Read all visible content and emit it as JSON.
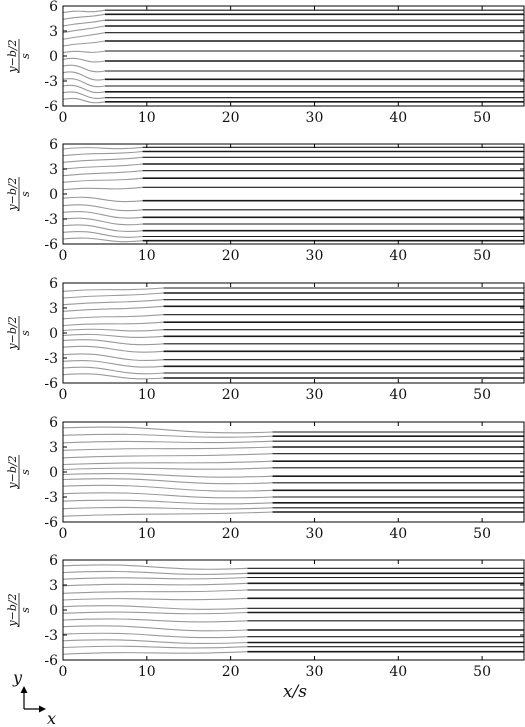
{
  "chart_data": [
    {
      "type": "line",
      "panel": 1,
      "title": "",
      "ylabel_numerator": "y−b/2",
      "ylabel_denominator": "s",
      "xlim": [
        0,
        55
      ],
      "ylim": [
        -6,
        6
      ],
      "xticks": [
        0,
        10,
        20,
        30,
        40,
        50
      ],
      "yticks": [
        -6,
        -3,
        0,
        3,
        6
      ],
      "x_transition": 5,
      "series": [
        {
          "values": [
            {
              "y0": 5.2,
              "yf": 5.5
            },
            {
              "y0": 4.4,
              "yf": 5.0
            },
            {
              "y0": 3.6,
              "yf": 4.3
            },
            {
              "y0": 2.8,
              "yf": 3.6
            },
            {
              "y0": 2.0,
              "yf": 2.8
            },
            {
              "y0": 1.2,
              "yf": 1.8
            },
            {
              "y0": 0.4,
              "yf": 0.6
            },
            {
              "y0": -0.4,
              "yf": -0.6
            },
            {
              "y0": -1.2,
              "yf": -1.8
            },
            {
              "y0": -2.0,
              "yf": -2.8
            },
            {
              "y0": -2.8,
              "yf": -3.6
            },
            {
              "y0": -3.6,
              "yf": -4.3
            },
            {
              "y0": -4.4,
              "yf": -5.0
            },
            {
              "y0": -5.2,
              "yf": -5.5
            }
          ]
        }
      ]
    },
    {
      "type": "line",
      "panel": 2,
      "title": "",
      "ylabel_numerator": "y−b/2",
      "ylabel_denominator": "s",
      "xlim": [
        0,
        55
      ],
      "ylim": [
        -6,
        6
      ],
      "xticks": [
        0,
        10,
        20,
        30,
        40,
        50
      ],
      "yticks": [
        -6,
        -3,
        0,
        3,
        6
      ],
      "x_transition": 9.5,
      "series": [
        {
          "values": [
            {
              "y0": 5.4,
              "yf": 5.6
            },
            {
              "y0": 4.6,
              "yf": 5.1
            },
            {
              "y0": 3.8,
              "yf": 4.4
            },
            {
              "y0": 3.0,
              "yf": 3.6
            },
            {
              "y0": 2.2,
              "yf": 2.8
            },
            {
              "y0": 1.4,
              "yf": 1.9
            },
            {
              "y0": 0.5,
              "yf": 0.8
            },
            {
              "y0": -0.5,
              "yf": -0.8
            },
            {
              "y0": -1.4,
              "yf": -1.9
            },
            {
              "y0": -2.2,
              "yf": -2.8
            },
            {
              "y0": -3.0,
              "yf": -3.6
            },
            {
              "y0": -3.8,
              "yf": -4.4
            },
            {
              "y0": -4.6,
              "yf": -5.1
            },
            {
              "y0": -5.4,
              "yf": -5.6
            }
          ]
        }
      ]
    },
    {
      "type": "line",
      "panel": 3,
      "title": "",
      "ylabel_numerator": "y−b/2",
      "ylabel_denominator": "s",
      "xlim": [
        0,
        55
      ],
      "ylim": [
        -6,
        6
      ],
      "xticks": [
        0,
        10,
        20,
        30,
        40,
        50
      ],
      "yticks": [
        -6,
        -3,
        0,
        3,
        6
      ],
      "x_transition": 12,
      "series": [
        {
          "values": [
            {
              "y0": 5.0,
              "yf": 5.4
            },
            {
              "y0": 4.2,
              "yf": 4.8
            },
            {
              "y0": 3.4,
              "yf": 4.0
            },
            {
              "y0": 2.6,
              "yf": 3.2
            },
            {
              "y0": 1.7,
              "yf": 2.2
            },
            {
              "y0": 0.9,
              "yf": 1.3
            },
            {
              "y0": 0.3,
              "yf": 0.4
            },
            {
              "y0": -0.3,
              "yf": -0.4
            },
            {
              "y0": -0.9,
              "yf": -1.3
            },
            {
              "y0": -1.7,
              "yf": -2.2
            },
            {
              "y0": -2.6,
              "yf": -3.2
            },
            {
              "y0": -3.4,
              "yf": -4.0
            },
            {
              "y0": -4.2,
              "yf": -4.8
            },
            {
              "y0": -5.0,
              "yf": -5.4
            }
          ]
        }
      ]
    },
    {
      "type": "line",
      "panel": 4,
      "title": "",
      "ylabel_numerator": "y−b/2",
      "ylabel_denominator": "s",
      "xlim": [
        0,
        55
      ],
      "ylim": [
        -6,
        6
      ],
      "xticks": [
        0,
        10,
        20,
        30,
        40,
        50
      ],
      "yticks": [
        -6,
        -3,
        0,
        3,
        6
      ],
      "x_transition": 25,
      "series": [
        {
          "values": [
            {
              "y0": 5.3,
              "yf": 4.8
            },
            {
              "y0": 4.4,
              "yf": 4.3
            },
            {
              "y0": 3.5,
              "yf": 3.7
            },
            {
              "y0": 2.6,
              "yf": 3.0
            },
            {
              "y0": 1.7,
              "yf": 2.2
            },
            {
              "y0": 0.9,
              "yf": 1.3
            },
            {
              "y0": 0.3,
              "yf": 0.5
            },
            {
              "y0": -0.3,
              "yf": -0.5
            },
            {
              "y0": -0.9,
              "yf": -1.3
            },
            {
              "y0": -1.7,
              "yf": -2.2
            },
            {
              "y0": -2.6,
              "yf": -3.0
            },
            {
              "y0": -3.5,
              "yf": -3.7
            },
            {
              "y0": -4.4,
              "yf": -4.3
            },
            {
              "y0": -5.3,
              "yf": -4.8
            }
          ]
        }
      ]
    },
    {
      "type": "line",
      "panel": 5,
      "title": "",
      "ylabel_numerator": "y−b/2",
      "ylabel_denominator": "s",
      "xlim": [
        0,
        55
      ],
      "ylim": [
        -6,
        6
      ],
      "xticks": [
        0,
        10,
        20,
        30,
        40,
        50
      ],
      "yticks": [
        -6,
        -3,
        0,
        3,
        6
      ],
      "x_transition": 22,
      "series": [
        {
          "values": [
            {
              "y0": 5.3,
              "yf": 5.0
            },
            {
              "y0": 4.5,
              "yf": 4.4
            },
            {
              "y0": 3.7,
              "yf": 3.9
            },
            {
              "y0": 2.9,
              "yf": 3.2
            },
            {
              "y0": 2.0,
              "yf": 2.4
            },
            {
              "y0": 1.2,
              "yf": 1.4
            },
            {
              "y0": 0.4,
              "yf": 0.2
            },
            {
              "y0": -0.4,
              "yf": -0.3
            },
            {
              "y0": -1.2,
              "yf": -1.3
            },
            {
              "y0": -2.0,
              "yf": -2.4
            },
            {
              "y0": -2.9,
              "yf": -3.2
            },
            {
              "y0": -3.7,
              "yf": -3.9
            },
            {
              "y0": -4.5,
              "yf": -4.4
            },
            {
              "y0": -5.3,
              "yf": -5.0
            }
          ]
        }
      ]
    }
  ],
  "shared_xlabel": "x/s",
  "axes_indicator": {
    "vertical_label": "y",
    "horizontal_label": "x"
  },
  "colors": {
    "line_dark": "#1a1a1a",
    "line_light": "#9a9a9a",
    "axis": "#000000"
  }
}
